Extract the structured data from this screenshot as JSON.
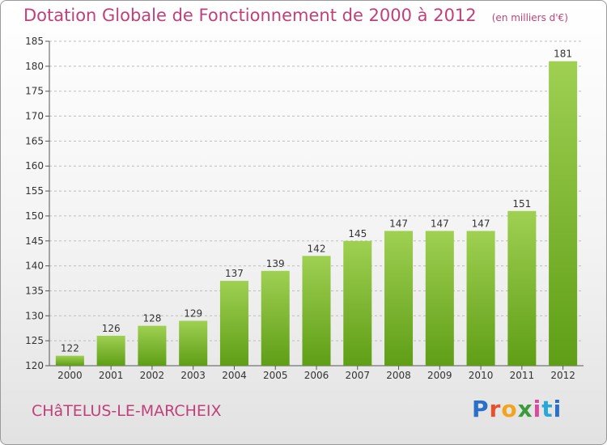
{
  "title": "Dotation Globale de Fonctionnement de 2000 à 2012",
  "subtitle": "(en milliers d'€)",
  "commune": "CHâTELUS-LE-MARCHEIX",
  "logo": {
    "text": "Proxiti"
  },
  "colors": {
    "title": "#c0417a",
    "bar_top": "#9fd052",
    "bar_bottom": "#5f9e16",
    "grid": "#bdbdbd"
  },
  "chart_data": {
    "type": "bar",
    "title": "Dotation Globale de Fonctionnement de 2000 à 2012",
    "subtitle": "(en milliers d'€)",
    "categories": [
      "2000",
      "2001",
      "2002",
      "2003",
      "2004",
      "2005",
      "2006",
      "2007",
      "2008",
      "2009",
      "2010",
      "2011",
      "2012"
    ],
    "values": [
      122,
      126,
      128,
      129,
      137,
      139,
      142,
      145,
      147,
      147,
      147,
      151,
      181
    ],
    "ylim": [
      120,
      185
    ],
    "yticks": [
      120,
      125,
      130,
      135,
      140,
      145,
      150,
      155,
      160,
      165,
      170,
      175,
      180,
      185
    ],
    "grid": true,
    "xlabel": "",
    "ylabel": ""
  }
}
